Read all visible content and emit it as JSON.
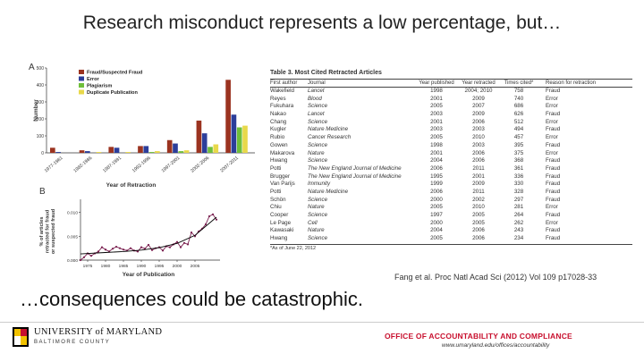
{
  "slide": {
    "title": "Research misconduct represents a low percentage, but…",
    "subtitle": "…consequences could be catastrophic.",
    "citation": "Fang et al. Proc Natl Acad Sci (2012) Vol 109 p17028-33"
  },
  "chart_data": [
    {
      "panel": "A",
      "type": "bar",
      "ylabel": "Number",
      "xlabel": "Year of Retraction",
      "ylim": [
        0,
        500
      ],
      "yticks": [
        0,
        100,
        200,
        300,
        400,
        500
      ],
      "categories": [
        "1977-1981",
        "1982-1986",
        "1987-1991",
        "1992-1996",
        "1997-2001",
        "2002-2006",
        "2007-2011"
      ],
      "series": [
        {
          "name": "Fraud/Suspected Fraud",
          "color": "#9b3320",
          "values": [
            30,
            15,
            35,
            40,
            75,
            190,
            430
          ]
        },
        {
          "name": "Error",
          "color": "#2c3e9a",
          "values": [
            5,
            10,
            30,
            40,
            55,
            115,
            225
          ]
        },
        {
          "name": "Plagiarism",
          "color": "#6fbf3a",
          "values": [
            0,
            0,
            0,
            5,
            10,
            35,
            150
          ]
        },
        {
          "name": "Duplicate Publication",
          "color": "#e8d84a",
          "values": [
            0,
            5,
            5,
            10,
            15,
            50,
            160
          ]
        }
      ],
      "legend_position": "top-left"
    },
    {
      "panel": "B",
      "type": "line",
      "ylabel": "% of articles retracted for fraud or suspected fraud",
      "xlabel": "Year of Publication",
      "xlim": [
        1973,
        2011
      ],
      "ylim": [
        0,
        0.012
      ],
      "yticks": [
        0.0,
        0.005,
        0.01
      ],
      "ytick_labels": [
        "0.000",
        "0.005",
        "0.010"
      ],
      "xticks": [
        1975,
        1980,
        1985,
        1990,
        1995,
        2000,
        2005
      ],
      "series": [
        {
          "name": "",
          "color": "#7a1f4f",
          "x": [
            1973,
            1974,
            1975,
            1976,
            1977,
            1978,
            1979,
            1980,
            1981,
            1982,
            1983,
            1984,
            1985,
            1986,
            1987,
            1988,
            1989,
            1990,
            1991,
            1992,
            1993,
            1994,
            1995,
            1996,
            1997,
            1998,
            1999,
            2000,
            2001,
            2002,
            2003,
            2004,
            2005,
            2006,
            2007,
            2008,
            2009,
            2010,
            2011
          ],
          "y": [
            0.0,
            0.0006,
            0.0014,
            0.0009,
            0.0014,
            0.0018,
            0.0027,
            0.0022,
            0.0018,
            0.0024,
            0.0028,
            0.0025,
            0.0022,
            0.002,
            0.0025,
            0.002,
            0.0018,
            0.0027,
            0.0024,
            0.0032,
            0.0021,
            0.0025,
            0.0027,
            0.002,
            0.0029,
            0.0027,
            0.0033,
            0.0038,
            0.0027,
            0.0036,
            0.0033,
            0.0058,
            0.005,
            0.006,
            0.0066,
            0.0075,
            0.0092,
            0.0096,
            0.0085
          ]
        }
      ],
      "trend": {
        "x": [
          1973,
          1980,
          1985,
          1990,
          1995,
          2000,
          2005,
          2011
        ],
        "y": [
          0.0013,
          0.0016,
          0.0018,
          0.0021,
          0.0026,
          0.0035,
          0.0052,
          0.009
        ]
      }
    }
  ],
  "table": {
    "title": "Table 3.  Most Cited Retracted Articles",
    "columns": [
      "First author",
      "Journal",
      "Year published",
      "Year retracted",
      "Times cited*",
      "Reason for retraction"
    ],
    "rows": [
      [
        "Wakefield",
        "Lancet",
        "1998",
        "2004; 2010",
        "758",
        "Fraud"
      ],
      [
        "Reyes",
        "Blood",
        "2001",
        "2009",
        "740",
        "Error"
      ],
      [
        "Fukuhara",
        "Science",
        "2005",
        "2007",
        "686",
        "Error"
      ],
      [
        "Nakao",
        "Lancet",
        "2003",
        "2009",
        "626",
        "Fraud"
      ],
      [
        "Chang",
        "Science",
        "2001",
        "2006",
        "512",
        "Error"
      ],
      [
        "Kugler",
        "Nature Medicine",
        "2003",
        "2003",
        "494",
        "Fraud"
      ],
      [
        "Rubio",
        "Cancer Research",
        "2005",
        "2010",
        "457",
        "Error"
      ],
      [
        "Gowen",
        "Science",
        "1998",
        "2003",
        "395",
        "Fraud"
      ],
      [
        "Makarova",
        "Nature",
        "2001",
        "2006",
        "375",
        "Error"
      ],
      [
        "Hwang",
        "Science",
        "2004",
        "2006",
        "368",
        "Fraud"
      ],
      [
        "Potti",
        "The New England Journal of Medicine",
        "2006",
        "2011",
        "361",
        "Fraud"
      ],
      [
        "Brugger",
        "The New England Journal of Medicine",
        "1995",
        "2001",
        "336",
        "Fraud"
      ],
      [
        "Van Parijs",
        "Immunity",
        "1999",
        "2009",
        "330",
        "Fraud"
      ],
      [
        "Potti",
        "Nature Medicine",
        "2006",
        "2011",
        "328",
        "Fraud"
      ],
      [
        "Schön",
        "Science",
        "2000",
        "2002",
        "297",
        "Fraud"
      ],
      [
        "Chiu",
        "Nature",
        "2005",
        "2010",
        "281",
        "Error"
      ],
      [
        "Cooper",
        "Science",
        "1997",
        "2005",
        "264",
        "Fraud"
      ],
      [
        "Le Page",
        "Cell",
        "2000",
        "2005",
        "262",
        "Error"
      ],
      [
        "Kawasaki",
        "Nature",
        "2004",
        "2006",
        "243",
        "Fraud"
      ],
      [
        "Hwang",
        "Science",
        "2005",
        "2006",
        "234",
        "Fraud"
      ]
    ],
    "footnote": "*As of June 22, 2012"
  },
  "footer": {
    "university": "UNIVERSITY of MARYLAND",
    "campus": "BALTIMORE COUNTY",
    "office": "OFFICE OF ACCOUNTABILITY AND COMPLIANCE",
    "office_url": "www.umaryland.edu/offices/accountability"
  },
  "colors": {
    "accent": "#c8102e"
  }
}
